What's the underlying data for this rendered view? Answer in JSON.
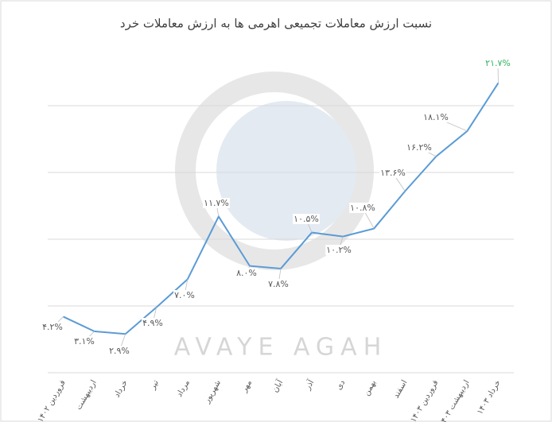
{
  "chart_data": {
    "type": "line",
    "title": "نسبت ارزش معاملات تجمیعی اهرمی ها به ارزش معاملات خرد",
    "watermark": "AVAYE AGAH",
    "categories": [
      "فروردین ۱۴۰۲",
      "اردیبهشت",
      "خرداد",
      "تیر",
      "مرداد",
      "شهریور",
      "مهر",
      "آبان",
      "آذر",
      "دی",
      "بهمن",
      "اسفند",
      "فروردین ۱۴۰۳",
      "اردیبهشت ۱۴۰۳",
      "خرداد ۱۴۰۳"
    ],
    "series": [
      {
        "color": "#5b9bd5",
        "values": [
          4.2,
          3.1,
          2.9,
          4.9,
          7.0,
          11.7,
          8.0,
          7.8,
          10.5,
          10.2,
          10.8,
          13.6,
          16.2,
          18.1,
          21.7
        ],
        "value_labels": [
          "۴.۲%",
          "۳.۱%",
          "۲.۹%",
          "۴.۹%",
          "۷.۰%",
          "۱۱.۷%",
          "۸.۰%",
          "۷.۸%",
          "۱۰.۵%",
          "۱۰.۲%",
          "۱۰.۸%",
          "۱۳.۶%",
          "۱۶.۲%",
          "۱۸.۱%",
          "۲۱.۷%"
        ]
      }
    ],
    "ylim": [
      0,
      25
    ],
    "yticks": [
      0,
      5,
      10,
      15,
      20
    ],
    "grid": true
  }
}
